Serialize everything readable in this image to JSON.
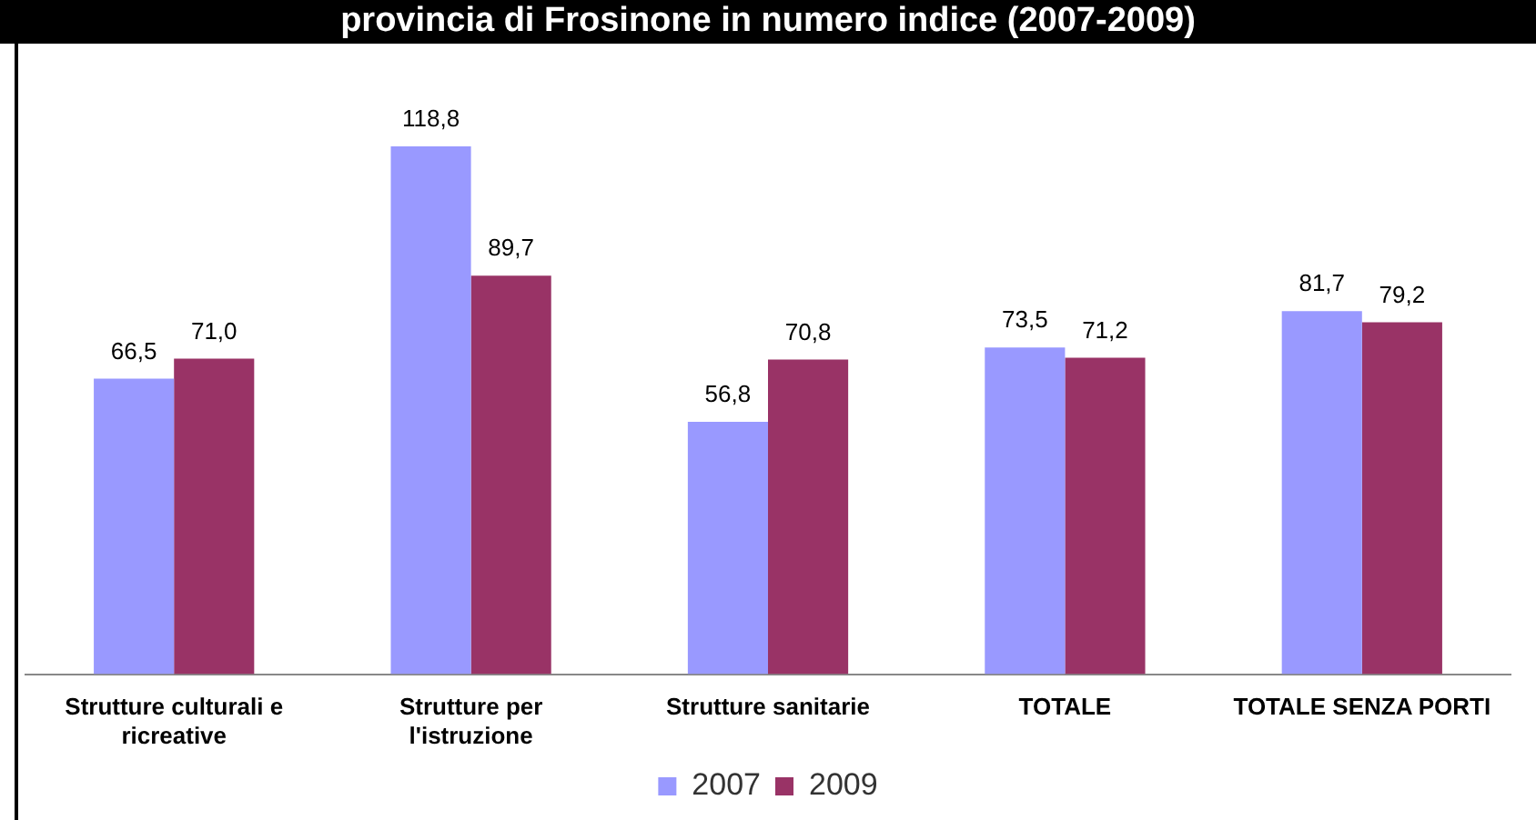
{
  "chart_data": {
    "type": "bar",
    "title": "provincia di Frosinone in numero indice (2007-2009)",
    "categories": [
      "Strutture culturali e ricreative",
      "Strutture per l'istruzione",
      "Strutture sanitarie",
      "TOTALE",
      "TOTALE SENZA PORTI"
    ],
    "series": [
      {
        "name": "2007",
        "color": "#9999ff",
        "values": [
          66.5,
          118.8,
          56.8,
          73.5,
          81.7
        ],
        "value_labels": [
          "66,5",
          "118,8",
          "56,8",
          "73,5",
          "81,7"
        ]
      },
      {
        "name": "2009",
        "color": "#993366",
        "values": [
          71.0,
          89.7,
          70.8,
          71.2,
          79.2
        ],
        "value_labels": [
          "71,0",
          "89,7",
          "70,8",
          "71,2",
          "79,2"
        ]
      }
    ],
    "legend": "bottom"
  }
}
